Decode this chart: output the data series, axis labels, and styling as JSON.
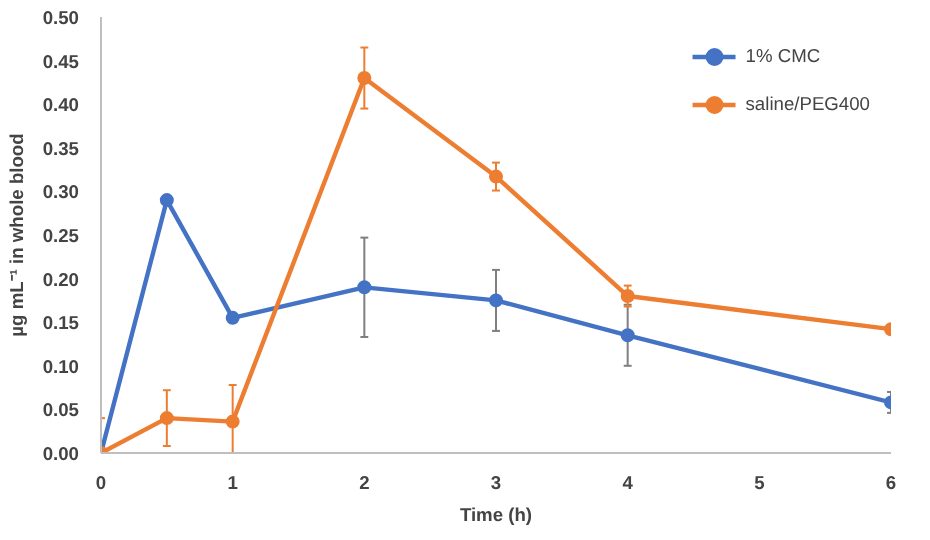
{
  "chart_data": {
    "type": "line",
    "xlabel": "Time (h)",
    "ylabel": "µg mL⁻¹ in whole blood",
    "x": [
      0,
      0.5,
      1,
      2,
      3,
      4,
      6
    ],
    "series": [
      {
        "name": "1% CMC",
        "color": "#4472c4",
        "values": [
          0,
          0.29,
          0.155,
          0.19,
          0.175,
          0.135,
          0.058
        ],
        "errors": [
          null,
          null,
          null,
          0.057,
          0.035,
          0.035,
          0.012
        ]
      },
      {
        "name": "saline/PEG400",
        "color": "#ed7d31",
        "values": [
          0,
          0.04,
          0.036,
          0.43,
          0.317,
          0.18,
          0.142
        ],
        "errors": [
          0.04,
          0.032,
          0.042,
          0.035,
          0.016,
          0.012,
          null
        ]
      }
    ],
    "xlim": [
      0,
      6
    ],
    "xticks": [
      0,
      1,
      2,
      3,
      4,
      5,
      6
    ],
    "ylim": [
      0,
      0.5
    ],
    "yticks": [
      {
        "value": 0,
        "label": "0.00"
      },
      {
        "value": 0.05,
        "label": "0.05"
      },
      {
        "value": 0.1,
        "label": "0.10"
      },
      {
        "value": 0.15,
        "label": "0.15"
      },
      {
        "value": 0.2,
        "label": "0.20"
      },
      {
        "value": 0.25,
        "label": "0.25"
      },
      {
        "value": 0.3,
        "label": "0.30"
      },
      {
        "value": 0.35,
        "label": "0.35"
      },
      {
        "value": 0.4,
        "label": "0.40"
      },
      {
        "value": 0.45,
        "label": "0.45"
      },
      {
        "value": 0.5,
        "label": "0.50"
      }
    ],
    "grid": false,
    "legend": "top right",
    "marker": "circle",
    "line_style": "solid"
  }
}
